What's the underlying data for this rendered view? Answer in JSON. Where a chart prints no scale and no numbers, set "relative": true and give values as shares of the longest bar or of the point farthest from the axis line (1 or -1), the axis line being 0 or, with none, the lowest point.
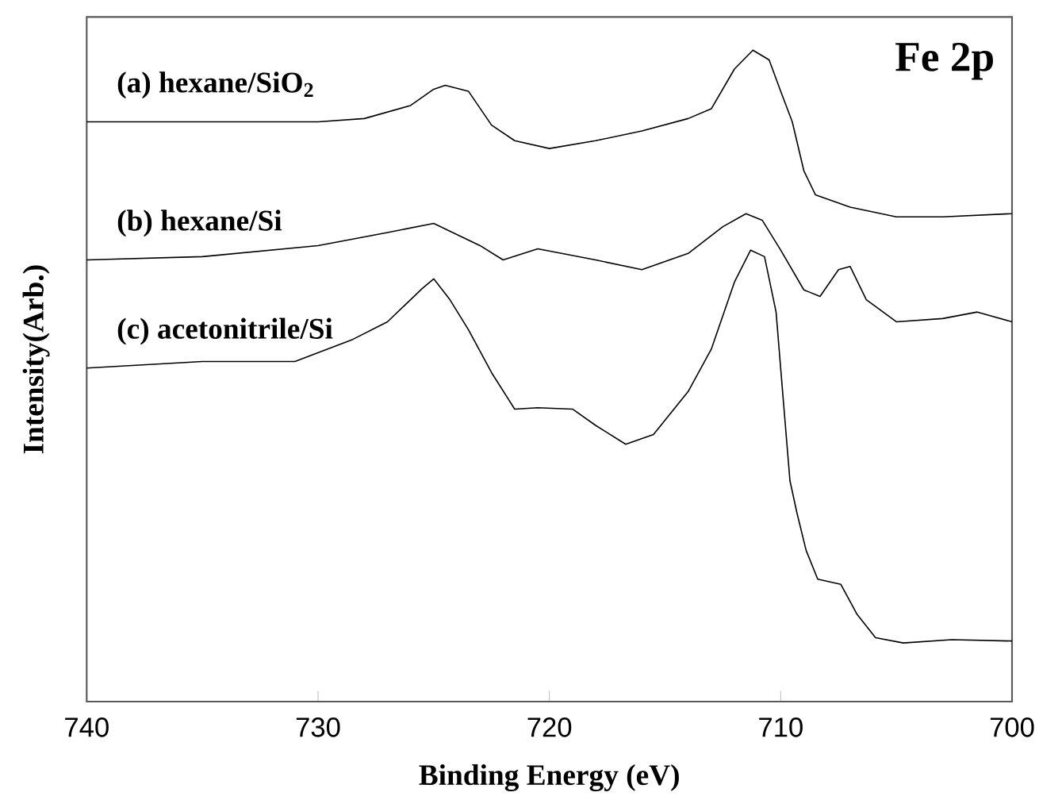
{
  "chart_data": {
    "type": "line",
    "relative": true,
    "xlabel": "Binding Energy (eV)",
    "ylabel": "Intensity(Arb.)",
    "annotations": [
      "Fe 2p"
    ],
    "xlim": [
      740,
      700
    ],
    "xticks": [
      740,
      730,
      720,
      710,
      700
    ],
    "series": [
      {
        "name": "(a) hexane/SiO$_{2}$",
        "color": "#000000",
        "x": [
          740,
          735,
          730,
          728,
          726,
          725,
          724.5,
          723.5,
          722.5,
          721.5,
          720,
          718,
          716,
          714,
          713,
          712,
          711.2,
          710.5,
          710,
          709.5,
          709,
          708.5,
          707,
          705,
          703,
          700
        ],
        "values": [
          0.89,
          0.89,
          0.89,
          0.895,
          0.915,
          0.94,
          0.946,
          0.937,
          0.885,
          0.861,
          0.849,
          0.861,
          0.876,
          0.895,
          0.91,
          0.971,
          1,
          0.985,
          0.937,
          0.89,
          0.815,
          0.778,
          0.759,
          0.744,
          0.744,
          0.749
        ]
      },
      {
        "name": "(b) hexane/Si",
        "color": "#000000",
        "x": [
          740,
          735,
          730,
          727,
          725,
          723,
          722,
          720.5,
          718,
          716,
          714,
          712.5,
          711.5,
          710.8,
          710,
          709,
          708.3,
          707.5,
          707,
          706.3,
          705,
          703,
          701.5,
          700
        ],
        "values": [
          0.678,
          0.683,
          0.7,
          0.72,
          0.734,
          0.7,
          0.678,
          0.695,
          0.678,
          0.663,
          0.688,
          0.729,
          0.749,
          0.739,
          0.693,
          0.632,
          0.622,
          0.663,
          0.668,
          0.617,
          0.583,
          0.588,
          0.598,
          0.583
        ]
      },
      {
        "name": "(c) acetonitrile/Si",
        "color": "#000000",
        "x": [
          740,
          735,
          731,
          728.5,
          727,
          725.5,
          725,
          724.3,
          723.5,
          722.5,
          721.5,
          720.5,
          719,
          718,
          716.7,
          715.5,
          714,
          713,
          712,
          711.3,
          710.7,
          710.2,
          709.9,
          709.6,
          709.3,
          708.9,
          708.4,
          707.4,
          706.7,
          705.9,
          704.7,
          702.6,
          700
        ],
        "values": [
          0.512,
          0.522,
          0.522,
          0.556,
          0.583,
          0.634,
          0.649,
          0.617,
          0.571,
          0.505,
          0.449,
          0.451,
          0.449,
          0.424,
          0.395,
          0.41,
          0.476,
          0.541,
          0.644,
          0.693,
          0.683,
          0.598,
          0.468,
          0.339,
          0.29,
          0.232,
          0.188,
          0.18,
          0.134,
          0.098,
          0.09,
          0.095,
          0.093
        ]
      }
    ]
  }
}
